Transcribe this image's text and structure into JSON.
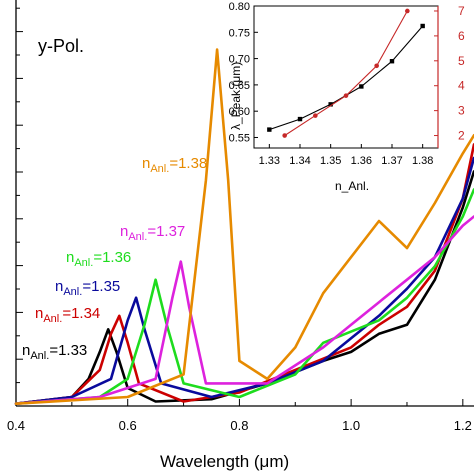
{
  "chart_data": [
    {
      "type": "line",
      "title": "y-Pol.",
      "xlabel": "Wavelength (μm)",
      "ylabel": "",
      "xlim": [
        0.4,
        1.22
      ],
      "ylim": [
        0,
        0.9
      ],
      "xticks": [
        "0.4",
        "0.6",
        "0.8",
        "1.0",
        "1.2"
      ],
      "grid": false,
      "series": [
        {
          "name": "n_Anl.=1.33",
          "color": "#000000",
          "x": [
            0.4,
            0.5,
            0.53,
            0.55,
            0.565,
            0.58,
            0.6,
            0.65,
            0.75,
            0.85,
            0.95,
            1.0,
            1.05,
            1.1,
            1.15,
            1.2,
            1.22
          ],
          "y": [
            0.005,
            0.02,
            0.06,
            0.12,
            0.17,
            0.12,
            0.04,
            0.01,
            0.015,
            0.05,
            0.1,
            0.12,
            0.16,
            0.18,
            0.28,
            0.44,
            0.52
          ]
        },
        {
          "name": "n_Anl.=1.34",
          "color": "#cc0000",
          "x": [
            0.4,
            0.5,
            0.55,
            0.57,
            0.585,
            0.6,
            0.62,
            0.7,
            0.8,
            0.9,
            1.0,
            1.05,
            1.1,
            1.15,
            1.2,
            1.22
          ],
          "y": [
            0.005,
            0.02,
            0.08,
            0.16,
            0.2,
            0.14,
            0.05,
            0.01,
            0.03,
            0.08,
            0.13,
            0.18,
            0.22,
            0.3,
            0.46,
            0.58
          ]
        },
        {
          "name": "n_Anl.=1.35",
          "color": "#0a0a9c",
          "x": [
            0.4,
            0.5,
            0.57,
            0.6,
            0.615,
            0.63,
            0.66,
            0.75,
            0.85,
            0.95,
            1.0,
            1.05,
            1.1,
            1.15,
            1.2,
            1.22
          ],
          "y": [
            0.005,
            0.02,
            0.06,
            0.19,
            0.24,
            0.17,
            0.05,
            0.02,
            0.05,
            0.1,
            0.15,
            0.2,
            0.26,
            0.33,
            0.46,
            0.55
          ]
        },
        {
          "name": "n_Anl.=1.36",
          "color": "#1edc1e",
          "x": [
            0.4,
            0.55,
            0.6,
            0.63,
            0.65,
            0.67,
            0.7,
            0.8,
            0.9,
            0.95,
            1.05,
            1.1,
            1.15,
            1.2,
            1.22
          ],
          "y": [
            0.005,
            0.02,
            0.06,
            0.18,
            0.28,
            0.18,
            0.05,
            0.02,
            0.07,
            0.14,
            0.19,
            0.24,
            0.31,
            0.42,
            0.48
          ]
        },
        {
          "name": "n_Anl.=1.37",
          "color": "#dd22dd",
          "x": [
            0.4,
            0.55,
            0.65,
            0.68,
            0.695,
            0.71,
            0.74,
            0.85,
            0.95,
            1.0,
            1.05,
            1.1,
            1.15,
            1.2,
            1.22
          ],
          "y": [
            0.005,
            0.02,
            0.06,
            0.24,
            0.32,
            0.22,
            0.05,
            0.05,
            0.13,
            0.18,
            0.23,
            0.28,
            0.33,
            0.4,
            0.42
          ]
        },
        {
          "name": "n_Anl.=1.38",
          "color": "#e68a00",
          "x": [
            0.4,
            0.6,
            0.7,
            0.74,
            0.76,
            0.78,
            0.8,
            0.85,
            0.9,
            0.95,
            1.0,
            1.05,
            1.1,
            1.15,
            1.2,
            1.22
          ],
          "y": [
            0.005,
            0.02,
            0.07,
            0.5,
            0.79,
            0.5,
            0.1,
            0.06,
            0.13,
            0.25,
            0.33,
            0.41,
            0.35,
            0.45,
            0.56,
            0.6
          ]
        }
      ],
      "annotations": [
        {
          "base": "n",
          "sub": "Anl.",
          "value": "=1.33",
          "color": "#000000"
        },
        {
          "base": "n",
          "sub": "Anl.",
          "value": "=1.34",
          "color": "#cc0000"
        },
        {
          "base": "n",
          "sub": "Anl.",
          "value": "=1.35",
          "color": "#0a0a9c"
        },
        {
          "base": "n",
          "sub": "Anl.",
          "value": "=1.36",
          "color": "#1edc1e"
        },
        {
          "base": "n",
          "sub": "Anl.",
          "value": "=1.37",
          "color": "#dd22dd"
        },
        {
          "base": "n",
          "sub": "Anl.",
          "value": "=1.38",
          "color": "#e68a00"
        }
      ]
    },
    {
      "type": "line",
      "title": "",
      "xlabel": "n_Anl.",
      "ylabel": "λ_Peak (μm)",
      "y2label": "",
      "xlim": [
        1.325,
        1.385
      ],
      "ylim": [
        0.53,
        0.8
      ],
      "y2lim": [
        1.5,
        7.2
      ],
      "xticks": [
        "1.33",
        "1.34",
        "1.35",
        "1.36",
        "1.37",
        "1.38"
      ],
      "yticks": [
        "0.55",
        "0.60",
        "0.65",
        "0.70",
        "0.75",
        "0.80"
      ],
      "y2ticks": [
        "2",
        "3",
        "4",
        "5",
        "6",
        "7"
      ],
      "series": [
        {
          "axis": "left",
          "color": "#000000",
          "marker": "square",
          "x": [
            1.33,
            1.34,
            1.35,
            1.36,
            1.37,
            1.38
          ],
          "y": [
            0.565,
            0.585,
            0.613,
            0.647,
            0.695,
            0.762
          ]
        },
        {
          "axis": "right",
          "color": "#c62828",
          "marker": "circle",
          "x": [
            1.335,
            1.345,
            1.355,
            1.365,
            1.375
          ],
          "y": [
            2.0,
            2.8,
            3.6,
            4.8,
            7.0
          ]
        }
      ]
    }
  ]
}
